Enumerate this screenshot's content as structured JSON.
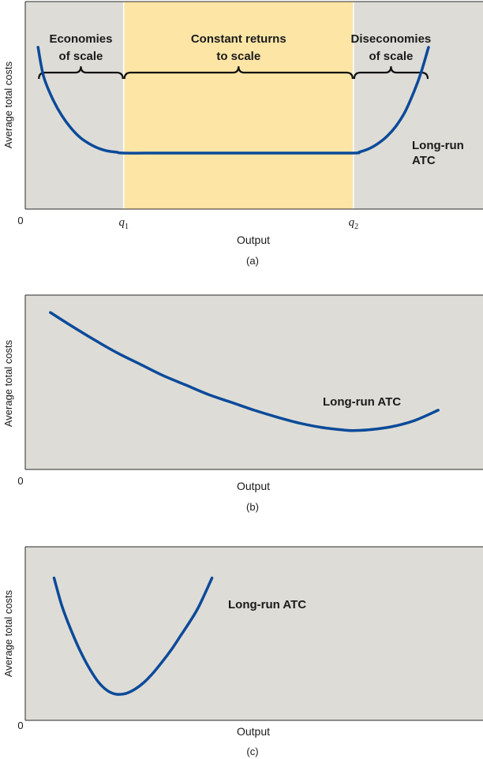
{
  "colors": {
    "plot_bg": "#dedcd6",
    "highlight": "#fde5a6",
    "curve": "#0b4a9a",
    "axis": "#2a2a2a"
  },
  "chart_data": [
    {
      "type": "line",
      "panel_label": "(a)",
      "xlabel": "Output",
      "ylabel": "Average total costs",
      "origin_label": "0",
      "xlim": [
        0,
        100
      ],
      "ylim": [
        0,
        100
      ],
      "x_ticks": [
        {
          "value": 21.5,
          "base": "q",
          "sub": "1"
        },
        {
          "value": 71.7,
          "base": "q",
          "sub": "2"
        }
      ],
      "regions": [
        {
          "label": [
            "Economies",
            "of scale"
          ],
          "x_start": 2.8,
          "x_end": 21.5,
          "shaded": false
        },
        {
          "label": [
            "Constant returns",
            "to scale"
          ],
          "x_start": 21.5,
          "x_end": 71.7,
          "shaded": true
        },
        {
          "label": [
            "Diseconomies",
            "of scale"
          ],
          "x_start": 71.7,
          "x_end": 88.1,
          "shaded": false
        }
      ],
      "series": [
        {
          "name": "Long-run ATC",
          "name_lines": [
            "Long-run",
            "ATC"
          ],
          "x": [
            2.8,
            4,
            6,
            8,
            10,
            12,
            14,
            16,
            18,
            20,
            21.5,
            30,
            40,
            50,
            60,
            71.7,
            73,
            75,
            77,
            79,
            81,
            83,
            85,
            86.5,
            88.1
          ],
          "y": [
            78,
            64,
            53,
            45,
            39,
            34.5,
            31.5,
            29.3,
            28,
            27.4,
            27,
            27,
            27,
            27,
            27,
            27,
            27.5,
            29,
            31.5,
            35,
            40,
            47,
            57,
            66,
            78
          ]
        }
      ]
    },
    {
      "type": "line",
      "panel_label": "(b)",
      "xlabel": "Output",
      "ylabel": "Average total costs",
      "origin_label": "0",
      "xlim": [
        0,
        100
      ],
      "ylim": [
        0,
        100
      ],
      "series": [
        {
          "name": "Long-run ATC",
          "name_lines": [
            "Long-run ATC"
          ],
          "x": [
            5.5,
            10,
            15,
            20,
            25,
            30,
            35,
            40,
            45,
            50,
            55,
            60,
            65,
            70,
            71.7,
            75,
            80,
            85,
            90.2
          ],
          "y": [
            90,
            82.5,
            74.5,
            67,
            60.5,
            54,
            48.5,
            43,
            38.5,
            34,
            30,
            26.5,
            24,
            22.5,
            22.3,
            22.7,
            24.5,
            28,
            34
          ]
        }
      ]
    },
    {
      "type": "line",
      "panel_label": "(c)",
      "xlabel": "Output",
      "ylabel": "Average total costs",
      "origin_label": "0",
      "xlim": [
        0,
        100
      ],
      "ylim": [
        0,
        100
      ],
      "series": [
        {
          "name": "Long-run ATC",
          "name_lines": [
            "Long-run ATC"
          ],
          "x": [
            6.3,
            8,
            10,
            12,
            14,
            16,
            18,
            20,
            22,
            24,
            26,
            28,
            30,
            32,
            34,
            36,
            38,
            40.8
          ],
          "y": [
            82,
            66,
            52,
            40,
            30,
            22,
            17,
            15,
            15.5,
            18,
            22,
            27.5,
            34,
            41,
            49,
            57,
            66,
            82
          ]
        }
      ]
    }
  ]
}
